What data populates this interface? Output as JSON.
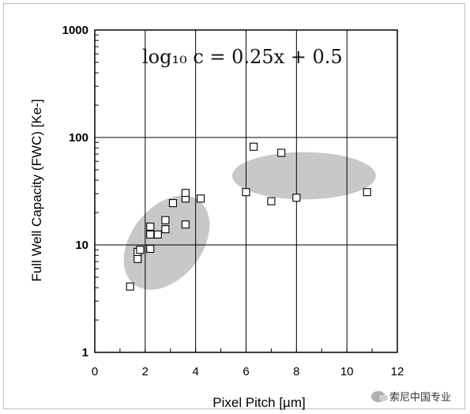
{
  "chart_data": {
    "type": "scatter",
    "title": "",
    "equation": "log₁₀ c = 0.25x + 0.5",
    "xlabel": "Pixel Pitch [µm]",
    "ylabel": "Full Well Capacity (FWC) [Ke-]",
    "xlim": [
      0,
      12
    ],
    "ylim": [
      1,
      1000
    ],
    "yscale": "log",
    "xticks": [
      "0",
      "2",
      "4",
      "6",
      "8",
      "10",
      "12"
    ],
    "yticks": [
      "1",
      "10",
      "100",
      "1000"
    ],
    "grid": "major, vertical every 2 from 2 to 10, horizontal at 10 and 100",
    "marker": "open-square",
    "points": [
      {
        "x": 1.4,
        "y": 4.1
      },
      {
        "x": 1.7,
        "y": 7.4
      },
      {
        "x": 1.7,
        "y": 8.6
      },
      {
        "x": 1.8,
        "y": 9.0
      },
      {
        "x": 2.2,
        "y": 9.2
      },
      {
        "x": 2.2,
        "y": 12.5
      },
      {
        "x": 2.2,
        "y": 14.8
      },
      {
        "x": 2.5,
        "y": 12.5
      },
      {
        "x": 2.8,
        "y": 14.0
      },
      {
        "x": 2.8,
        "y": 17.0
      },
      {
        "x": 3.1,
        "y": 24.5
      },
      {
        "x": 3.6,
        "y": 15.5
      },
      {
        "x": 3.6,
        "y": 27.0
      },
      {
        "x": 3.6,
        "y": 30.5
      },
      {
        "x": 4.2,
        "y": 27.0
      },
      {
        "x": 6.0,
        "y": 31.0
      },
      {
        "x": 6.3,
        "y": 82.0
      },
      {
        "x": 7.0,
        "y": 25.5
      },
      {
        "x": 7.4,
        "y": 72.0
      },
      {
        "x": 8.0,
        "y": 27.5
      },
      {
        "x": 10.8,
        "y": 31.0
      }
    ],
    "clusters": [
      {
        "name": "",
        "cx": 2.85,
        "cy": 10.5,
        "rx": 2.1,
        "ry": 0.33,
        "angle_deg": -52,
        "color": "#c8c8c8"
      },
      {
        "name": "",
        "cx": 8.3,
        "cy": 44.0,
        "rx": 2.85,
        "ry": 0.22,
        "angle_deg": 0,
        "color": "#c8c8c8"
      }
    ]
  },
  "watermark": {
    "text": "索尼中国专业"
  }
}
